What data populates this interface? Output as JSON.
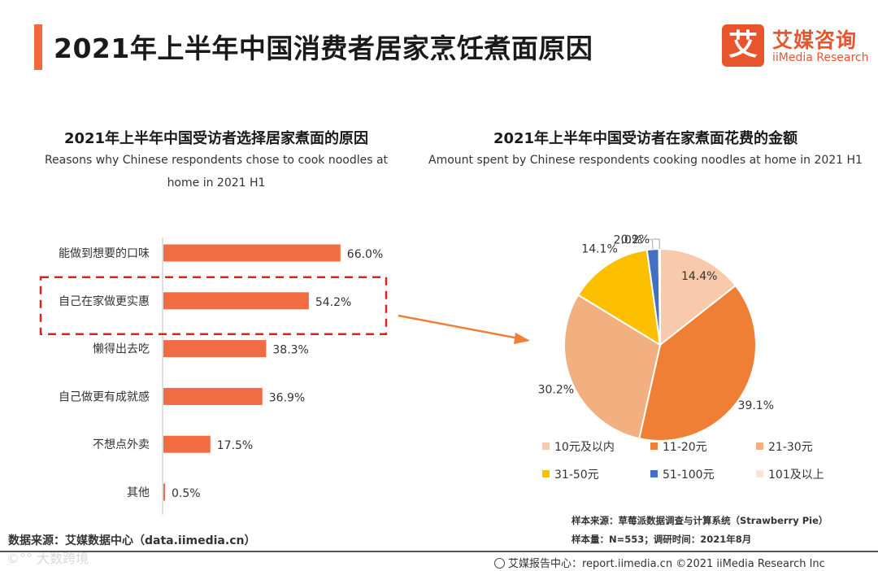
{
  "page": {
    "title": "2021年上半年中国消费者居家烹饪煮面原因",
    "logo_mark": "艾",
    "logo_cn": "艾媒咨询",
    "logo_en": "iiMedia Research",
    "accent_color": "#ef6a3c"
  },
  "left_panel": {
    "title": "2021年上半年中国受访者选择居家煮面的原因",
    "subtitle_line1": "Reasons why Chinese respondents chose to cook noodles at",
    "subtitle_line2": "home in 2021 H1"
  },
  "right_panel": {
    "title": "2021年上半年中国受访者在家煮面花费的金额",
    "subtitle": "Amount spent by Chinese respondents cooking noodles at home in 2021 H1"
  },
  "chart_data": [
    {
      "type": "bar",
      "orientation": "horizontal",
      "title": "2021年上半年中国受访者选择居家煮面的原因",
      "categories": [
        "能做到想要的口味",
        "自己在家做更实惠",
        "懒得出去吃",
        "自己做更有成就感",
        "不想点外卖",
        "其他"
      ],
      "values": [
        66.0,
        54.2,
        38.3,
        36.9,
        17.5,
        0.5
      ],
      "value_labels": [
        "66.0%",
        "54.2%",
        "38.3%",
        "36.9%",
        "17.5%",
        "0.5%"
      ],
      "highlighted_category": "自己在家做更实惠",
      "bar_color": "#f26c43",
      "unit": "%"
    },
    {
      "type": "pie",
      "title": "2021年上半年中国受访者在家煮面花费的金额",
      "categories": [
        "10元及以内",
        "11-20元",
        "21-30元",
        "31-50元",
        "51-100元",
        "101及以上"
      ],
      "values": [
        14.4,
        39.1,
        30.2,
        14.1,
        2.0,
        0.2
      ],
      "value_labels": [
        "14.4%",
        "39.1%",
        "30.2%",
        "14.1%",
        "2.0%",
        "0.2%"
      ],
      "colors": [
        "#f8c9ab",
        "#ee7f35",
        "#f2b080",
        "#fcbf00",
        "#4470c4",
        "#fbe3d6"
      ],
      "legend_position": "bottom"
    }
  ],
  "footer": {
    "source_left": "数据来源：艾媒数据中心（data.iimedia.cn）",
    "sample_source": "样本来源：草莓派数据调查与计算系统（Strawberry Pie）",
    "sample_size": "样本量：N=553；调研时间：2021年8月",
    "report_center": "艾媒报告中心：report.iimedia.cn ©2021  iiMedia Research  Inc",
    "watermark": "©°° 大数跨境"
  }
}
